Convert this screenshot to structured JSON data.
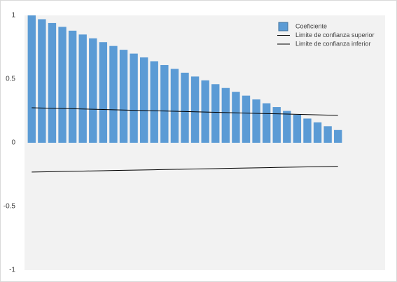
{
  "chart_data": {
    "type": "bar",
    "categories": [
      null,
      null,
      null,
      null,
      null,
      null,
      null,
      null,
      null,
      null,
      null,
      null,
      null,
      null,
      null,
      null,
      null,
      null,
      null,
      null,
      null,
      null,
      null,
      null,
      null,
      null,
      null,
      null,
      null,
      null,
      null
    ],
    "series": [
      {
        "name": "Coeficiente",
        "type": "bar",
        "color": "#5b9bd5",
        "values": [
          1,
          0.97,
          0.94,
          0.91,
          0.88,
          0.85,
          0.82,
          0.79,
          0.76,
          0.73,
          0.7,
          0.67,
          0.64,
          0.61,
          0.58,
          0.55,
          0.52,
          0.49,
          0.46,
          0.43,
          0.4,
          0.37,
          0.34,
          0.31,
          0.28,
          0.25,
          0.22,
          0.19,
          0.16,
          0.13,
          0.1
        ]
      },
      {
        "name": "Limite de confianza superior",
        "type": "line",
        "color": "#000000",
        "values": [
          0.275,
          0.273,
          0.271,
          0.269,
          0.267,
          0.265,
          0.263,
          0.261,
          0.259,
          0.257,
          0.255,
          0.253,
          0.251,
          0.249,
          0.247,
          0.245,
          0.243,
          0.241,
          0.239,
          0.237,
          0.235,
          0.233,
          0.231,
          0.229,
          0.227,
          0.225,
          0.223,
          0.221,
          0.219,
          0.217,
          0.215
        ]
      },
      {
        "name": "Limite de confianza inferior",
        "type": "line",
        "color": "#000000",
        "values": [
          -0.23,
          -0.2285,
          -0.227,
          -0.2255,
          -0.224,
          -0.2225,
          -0.221,
          -0.2195,
          -0.218,
          -0.2165,
          -0.215,
          -0.2135,
          -0.212,
          -0.2105,
          -0.209,
          -0.2075,
          -0.206,
          -0.2045,
          -0.203,
          -0.2015,
          -0.2,
          -0.1985,
          -0.197,
          -0.1955,
          -0.194,
          -0.1925,
          -0.191,
          -0.1895,
          -0.188,
          -0.1865,
          -0.185
        ]
      }
    ],
    "ylim": [
      -1,
      1
    ],
    "yticks": [
      1,
      0.5,
      0,
      -0.5,
      -1
    ],
    "grid": false,
    "legend": "top-right"
  }
}
